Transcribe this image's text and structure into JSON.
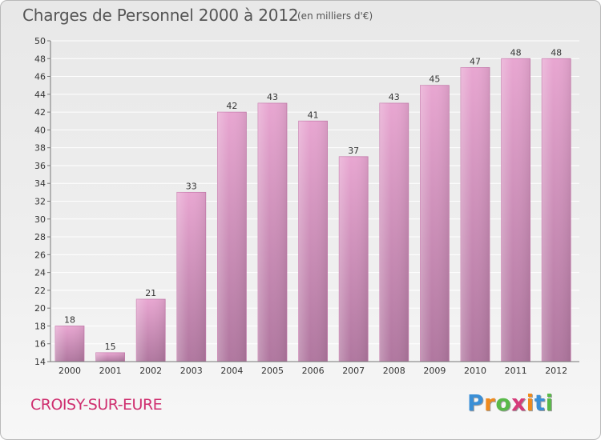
{
  "title": "Charges de Personnel 2000 à 2012",
  "subtitle": "(en milliers d'€)",
  "commune": "CROISY-SUR-EURE",
  "logo": {
    "letters": [
      "P",
      "r",
      "o",
      "x",
      "i",
      "t",
      "i"
    ],
    "colors": [
      "#3a8fd6",
      "#f08a1c",
      "#58b948",
      "#d63a7a",
      "#f08a1c",
      "#3a8fd6",
      "#58b948"
    ]
  },
  "colors": {
    "bar_top": "#e8a6d1",
    "bar_bottom": "#b0779f",
    "grid": "#ffffff",
    "title": "#555555",
    "commune": "#cf2f6f"
  },
  "chart_data": {
    "type": "bar",
    "categories": [
      "2000",
      "2001",
      "2002",
      "2003",
      "2004",
      "2005",
      "2006",
      "2007",
      "2008",
      "2009",
      "2010",
      "2011",
      "2012"
    ],
    "values": [
      18,
      15,
      21,
      33,
      42,
      43,
      41,
      37,
      43,
      45,
      47,
      48,
      48
    ],
    "title": "Charges de Personnel 2000 à 2012",
    "subtitle": "(en milliers d'€)",
    "ylim": [
      14,
      50
    ],
    "yticks": [
      14,
      16,
      18,
      20,
      22,
      24,
      26,
      28,
      30,
      32,
      34,
      36,
      38,
      40,
      42,
      44,
      46,
      48,
      50
    ],
    "grid": true
  }
}
